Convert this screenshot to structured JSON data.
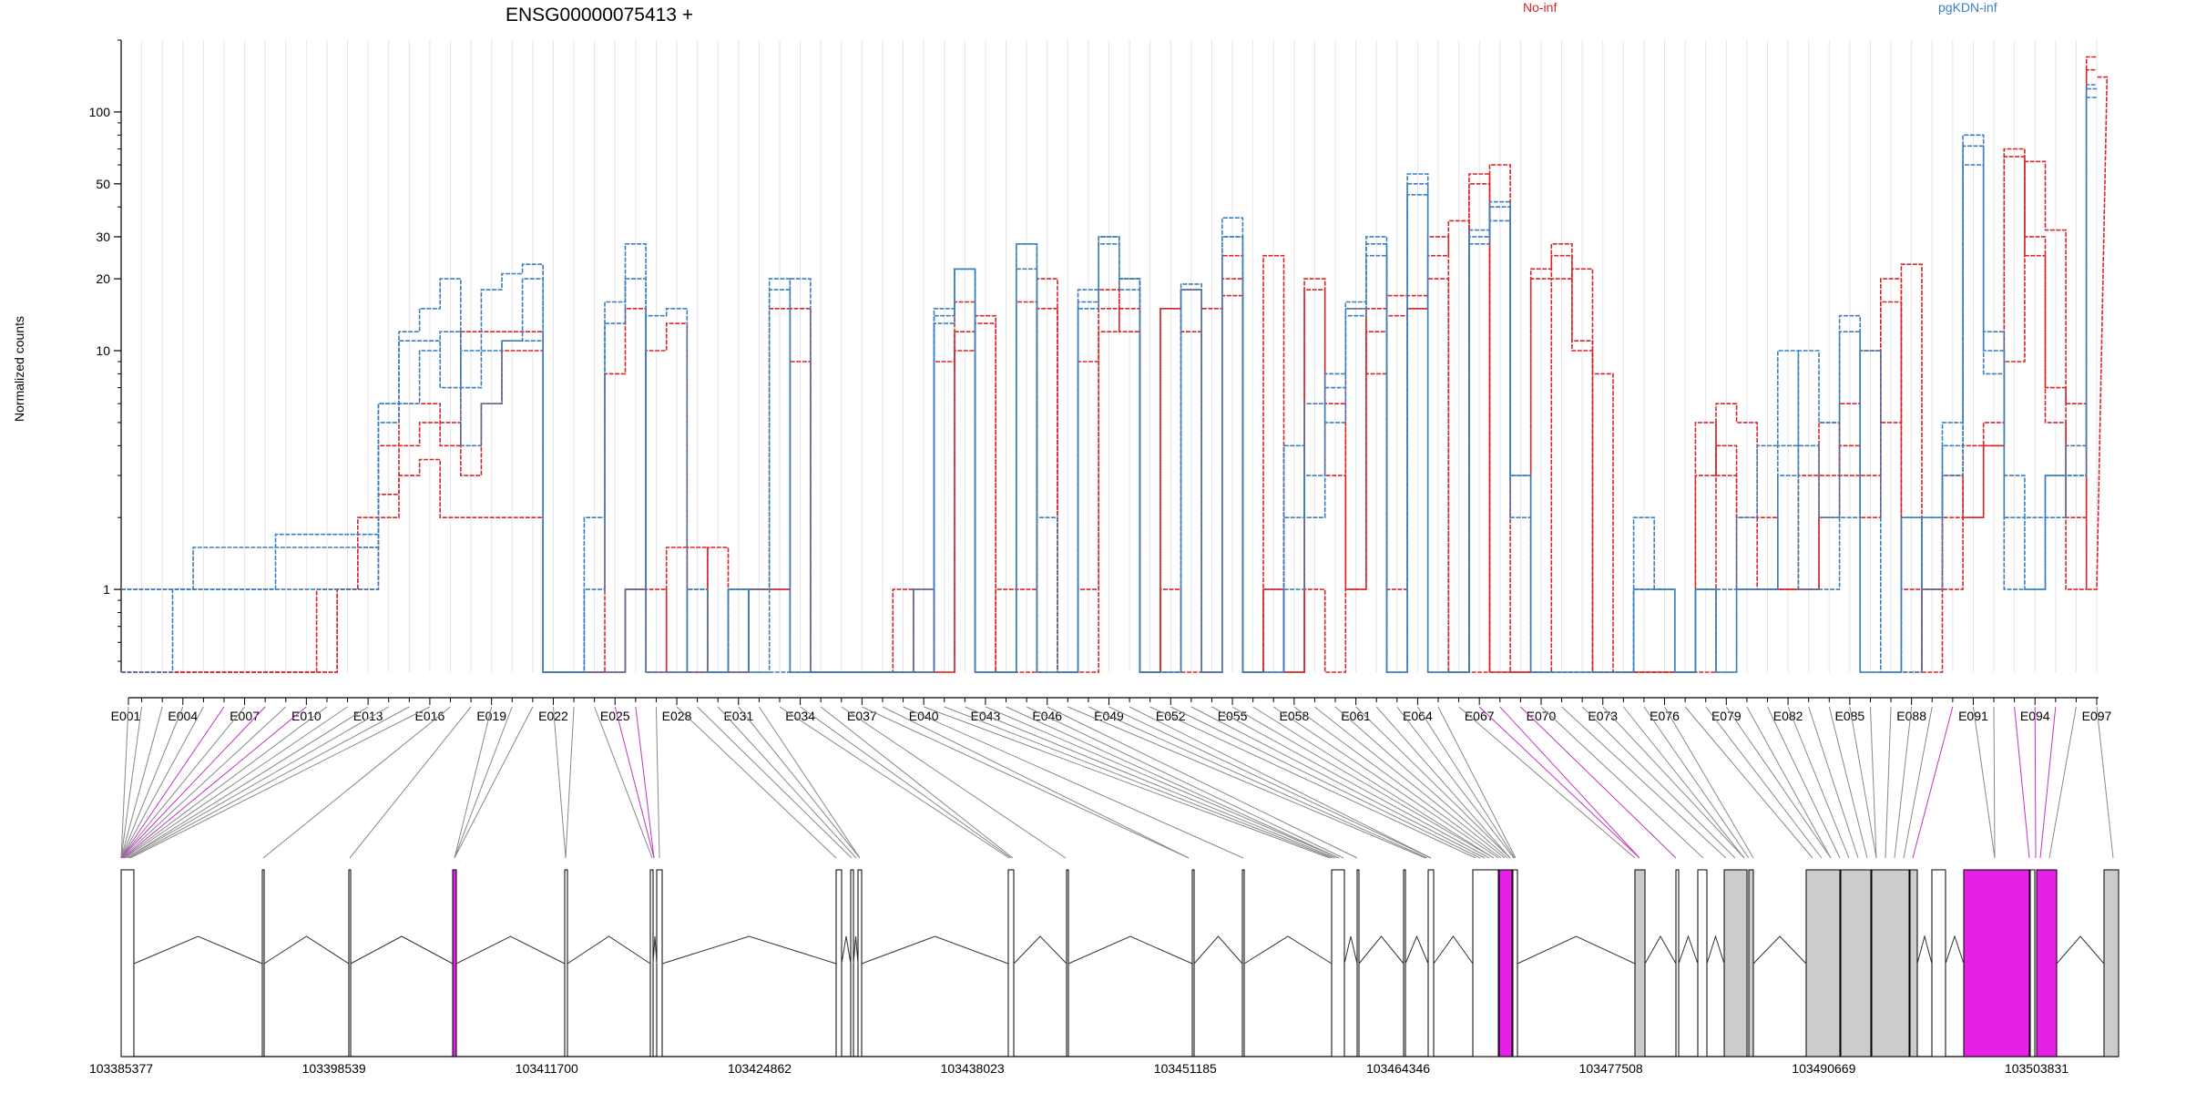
{
  "chart_data": {
    "type": "line",
    "title": "ENSG00000075413 +",
    "ylabel": "Normalized counts",
    "yscale": "log",
    "ylim": [
      0.45,
      200
    ],
    "yticks": [
      1,
      10,
      20,
      30,
      50,
      100
    ],
    "ytick_labels": [
      "1",
      "10",
      "20",
      "30",
      "50",
      "100"
    ],
    "grid": "vertical",
    "legend": [
      {
        "name": "No-inf",
        "color": "#d62728"
      },
      {
        "name": "pgKDN-inf",
        "color": "#3a7fc0"
      }
    ],
    "exon_labels": [
      "E001",
      "E004",
      "E007",
      "E010",
      "E013",
      "E016",
      "E019",
      "E022",
      "E025",
      "E028",
      "E031",
      "E034",
      "E037",
      "E040",
      "E043",
      "E046",
      "E049",
      "E052",
      "E055",
      "E058",
      "E061",
      "E064",
      "E067",
      "E070",
      "E073",
      "E076",
      "E079",
      "E082",
      "E085",
      "E088",
      "E091",
      "E094",
      "E097"
    ],
    "n_exons": 97,
    "series": [
      {
        "name": "No-inf",
        "values": [
          0.45,
          0.45,
          0.45,
          0.45,
          0.45,
          0.45,
          0.45,
          0.45,
          0.45,
          0.45,
          0.45,
          1.0,
          1.0,
          2.0,
          3.0,
          3.5,
          2.0,
          2.0,
          2.0,
          2.0,
          2.0,
          0.45,
          0.45,
          0.45,
          0.45,
          1.0,
          1.0,
          0.45,
          1.5,
          0.45,
          0.45,
          1.0,
          1.0,
          15.0,
          0.45,
          0.45,
          0.45,
          0.45,
          0.45,
          1.0,
          0.45,
          12.0,
          14.0,
          0.45,
          1.0,
          15.0,
          0.45,
          1.0,
          12.0,
          15.0,
          0.45,
          15.0,
          12.0,
          0.45,
          17.0,
          0.45,
          1.0,
          0.45,
          20.0,
          3.0,
          1.0,
          12.0,
          14.0,
          15.0,
          20.0,
          0.45,
          50.0,
          0.45,
          0.45,
          20.0,
          25.0,
          10.0,
          0.45,
          0.45,
          0.45,
          0.45,
          0.45,
          3.0,
          4.0,
          2.0,
          1.0,
          1.0,
          1.0,
          3.0,
          4.0,
          3.0,
          20.0,
          1.0,
          0.45,
          3.0,
          2.0,
          4.0,
          65.0,
          30.0,
          7.0,
          1.0,
          170.0
        ]
      },
      {
        "name": "No-inf",
        "values": [
          0.45,
          0.45,
          0.45,
          0.45,
          0.45,
          0.45,
          0.45,
          0.45,
          0.45,
          0.45,
          1.0,
          1.0,
          2.0,
          4.0,
          6.0,
          6.0,
          4.0,
          12.0,
          12.0,
          12.0,
          12.0,
          0.45,
          0.45,
          0.45,
          8.0,
          15.0,
          0.45,
          1.5,
          0.45,
          0.45,
          1.0,
          1.0,
          15.0,
          0.45,
          0.45,
          0.45,
          0.45,
          0.45,
          1.0,
          0.45,
          9.0,
          16.0,
          0.45,
          1.0,
          16.0,
          0.45,
          0.45,
          9.0,
          18.0,
          12.0,
          0.45,
          15.0,
          18.0,
          0.45,
          25.0,
          0.45,
          1.0,
          0.45,
          18.0,
          6.0,
          1.0,
          15.0,
          17.0,
          17.0,
          30.0,
          0.45,
          55.0,
          0.45,
          0.45,
          22.0,
          28.0,
          11.0,
          0.45,
          0.45,
          0.45,
          0.45,
          0.45,
          5.0,
          3.0,
          1.0,
          1.0,
          1.0,
          3.0,
          5.0,
          3.0,
          2.0,
          16.0,
          0.45,
          1.0,
          2.0,
          4.0,
          5.0,
          70.0,
          25.0,
          5.0,
          2.0,
          150.0
        ]
      },
      {
        "name": "No-inf",
        "values": [
          0.45,
          0.45,
          0.45,
          0.45,
          0.45,
          0.45,
          0.45,
          0.45,
          0.45,
          0.45,
          0.45,
          1.0,
          1.5,
          2.5,
          4.0,
          5.0,
          5.0,
          3.0,
          6.0,
          10.0,
          10.0,
          0.45,
          0.45,
          0.45,
          0.45,
          1.0,
          10.0,
          13.0,
          0.45,
          1.5,
          0.45,
          1.0,
          1.0,
          9.0,
          0.45,
          0.45,
          0.45,
          0.45,
          0.45,
          0.45,
          0.45,
          10.0,
          13.0,
          0.45,
          0.45,
          20.0,
          0.45,
          0.45,
          15.0,
          20.0,
          0.45,
          1.0,
          0.45,
          15.0,
          20.0,
          0.45,
          25.0,
          0.45,
          1.0,
          0.45,
          15.0,
          8.0,
          1.0,
          15.0,
          25.0,
          35.0,
          0.45,
          60.0,
          0.45,
          0.45,
          20.0,
          22.0,
          8.0,
          0.45,
          0.45,
          0.45,
          0.45,
          0.45,
          6.0,
          5.0,
          2.0,
          1.0,
          1.0,
          2.0,
          6.0,
          10.0,
          5.0,
          23.0,
          1.0,
          1.0,
          2.0,
          4.0,
          9.0,
          62.0,
          32.0,
          6.0,
          1.0,
          140.0
        ]
      },
      {
        "name": "pgKDN-inf",
        "values": [
          1.0,
          1.0,
          1.0,
          1.0,
          1.0,
          1.0,
          1.0,
          1.0,
          1.0,
          1.0,
          1.0,
          1.0,
          1.0,
          6.0,
          11.0,
          11.0,
          7.0,
          10.0,
          10.0,
          11.0,
          11.0,
          0.45,
          0.45,
          0.45,
          0.45,
          1.0,
          14.0,
          15.0,
          0.45,
          0.45,
          1.0,
          0.45,
          0.45,
          20.0,
          0.45,
          0.45,
          0.45,
          0.45,
          0.45,
          0.45,
          14.0,
          22.0,
          0.45,
          0.45,
          22.0,
          0.45,
          0.45,
          15.0,
          30.0,
          20.0,
          0.45,
          0.45,
          18.0,
          0.45,
          30.0,
          0.45,
          0.45,
          4.0,
          2.0,
          8.0,
          16.0,
          28.0,
          0.45,
          50.0,
          0.45,
          0.45,
          30.0,
          40.0,
          3.0,
          0.45,
          0.45,
          0.45,
          0.45,
          0.45,
          1.0,
          1.0,
          0.45,
          1.0,
          0.45,
          1.0,
          1.0,
          4.0,
          4.0,
          2.0,
          12.0,
          0.45,
          0.45,
          2.0,
          1.0,
          4.0,
          60.0,
          12.0,
          3.0,
          2.0,
          3.0,
          3.0,
          115.0
        ]
      },
      {
        "name": "pgKDN-inf",
        "values": [
          1.0,
          1.0,
          1.0,
          1.0,
          1.5,
          1.5,
          1.5,
          1.5,
          1.5,
          1.5,
          1.5,
          1.5,
          1.5,
          5.0,
          6.0,
          10.0,
          12.0,
          4.0,
          6.0,
          11.0,
          20.0,
          0.45,
          0.45,
          2.0,
          13.0,
          20.0,
          0.45,
          0.45,
          1.0,
          0.45,
          0.45,
          1.0,
          20.0,
          0.45,
          0.45,
          0.45,
          0.45,
          0.45,
          0.45,
          1.0,
          13.0,
          22.0,
          0.45,
          0.45,
          28.0,
          2.0,
          0.45,
          18.0,
          30.0,
          20.0,
          0.45,
          0.45,
          19.0,
          0.45,
          30.0,
          0.45,
          0.45,
          2.0,
          6.0,
          5.0,
          15.0,
          25.0,
          0.45,
          45.0,
          0.45,
          0.45,
          32.0,
          42.0,
          3.0,
          0.45,
          0.45,
          0.45,
          0.45,
          0.45,
          1.0,
          1.0,
          0.45,
          1.0,
          1.0,
          1.0,
          1.0,
          3.0,
          10.0,
          5.0,
          14.0,
          0.45,
          0.45,
          2.0,
          2.0,
          5.0,
          72.0,
          10.0,
          2.0,
          1.0,
          2.0,
          3.0,
          130.0
        ]
      },
      {
        "name": "pgKDN-inf",
        "values": [
          0.45,
          0.45,
          0.45,
          1.0,
          1.0,
          1.0,
          1.0,
          1.0,
          1.7,
          1.7,
          1.7,
          1.7,
          1.7,
          6.0,
          12.0,
          15.0,
          20.0,
          7.0,
          18.0,
          21.0,
          23.0,
          0.45,
          0.45,
          1.0,
          16.0,
          28.0,
          0.45,
          0.45,
          1.0,
          0.45,
          1.0,
          0.45,
          18.0,
          0.45,
          0.45,
          0.45,
          0.45,
          0.45,
          0.45,
          0.45,
          15.0,
          22.0,
          0.45,
          0.45,
          28.0,
          0.45,
          0.45,
          16.0,
          28.0,
          18.0,
          0.45,
          0.45,
          18.0,
          0.45,
          36.0,
          0.45,
          0.45,
          1.0,
          3.0,
          7.0,
          14.0,
          30.0,
          0.45,
          55.0,
          0.45,
          0.45,
          28.0,
          35.0,
          2.0,
          0.45,
          0.45,
          0.45,
          0.45,
          0.45,
          2.0,
          1.0,
          0.45,
          1.0,
          0.45,
          2.0,
          4.0,
          10.0,
          1.0,
          1.0,
          2.0,
          10.0,
          0.45,
          0.45,
          2.0,
          3.0,
          80.0,
          8.0,
          1.0,
          1.0,
          3.0,
          4.0,
          125.0
        ]
      }
    ],
    "genomic_axis": {
      "tick_labels": [
        "103385377",
        "103398539",
        "103411700",
        "103424862",
        "103438023",
        "103451185",
        "103464346",
        "103477508",
        "103490669",
        "103503831"
      ]
    },
    "highlight_color": "#e620e6"
  }
}
